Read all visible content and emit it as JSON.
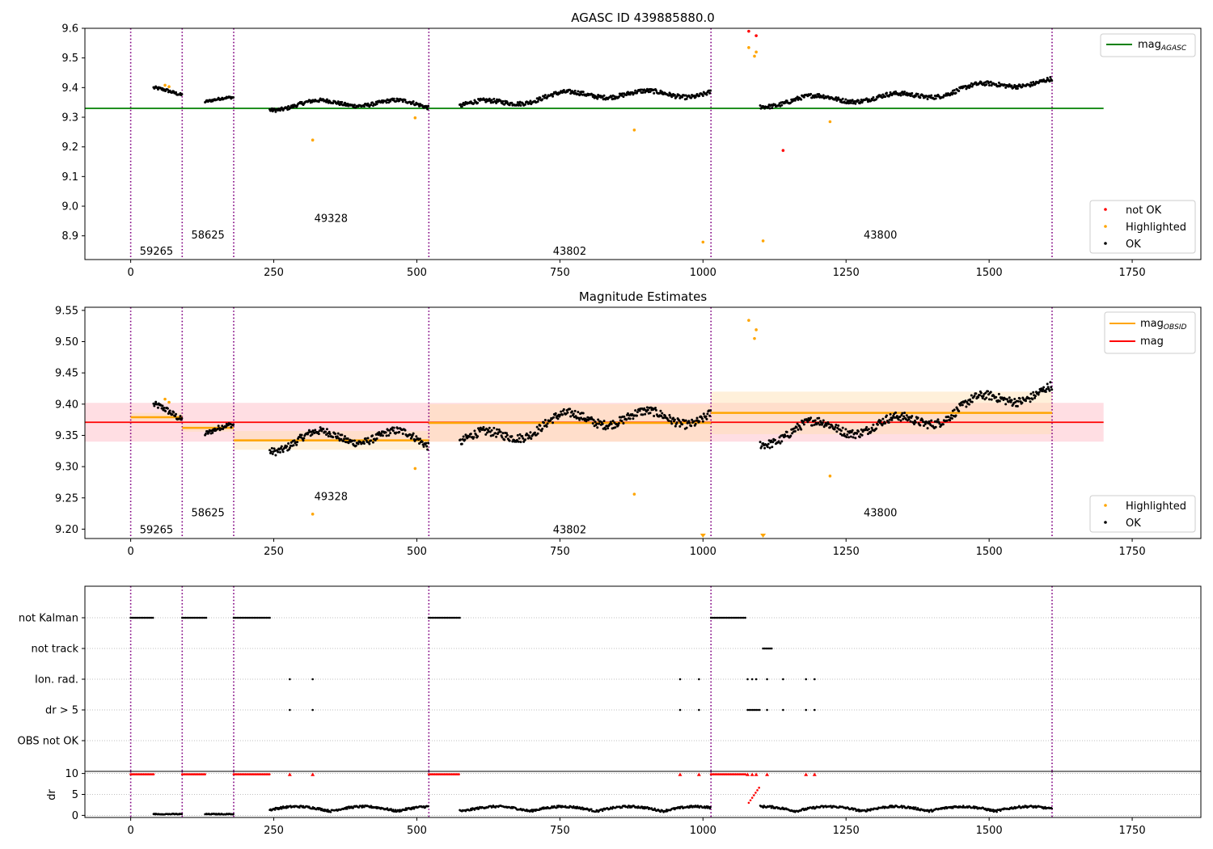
{
  "colors": {
    "ok": "#000000",
    "highlighted": "#ffa500",
    "not_ok": "#ff0000",
    "mag_agasc": "#008000",
    "mag_obsid": "#ffa500",
    "mag": "#ff0000",
    "obsid_boundary": "#800080",
    "band_mag": "#ffb6c1",
    "band_obsid": "#ffdead"
  },
  "chart_data": [
    {
      "type": "scatter",
      "title": "AGASC ID 439885880.0",
      "xlim": [
        -80,
        1870
      ],
      "ylim": [
        8.82,
        9.6
      ],
      "xticks": [
        0,
        250,
        500,
        750,
        1000,
        1250,
        1500,
        1750
      ],
      "yticks": [
        8.9,
        9.0,
        9.1,
        9.2,
        9.3,
        9.4,
        9.5,
        9.6
      ],
      "mag_agasc": 9.33,
      "mag_agasc_range": [
        -80,
        1700
      ],
      "obsid_boundaries": [
        0,
        90,
        180,
        521,
        1014,
        1610
      ],
      "obsid_labels": [
        {
          "text": "59265",
          "x": 45,
          "y": 8.85
        },
        {
          "text": "58625",
          "x": 135,
          "y": 8.905
        },
        {
          "text": "49328",
          "x": 350,
          "y": 8.96
        },
        {
          "text": "43802",
          "x": 767,
          "y": 8.85
        },
        {
          "text": "43800",
          "x": 1310,
          "y": 8.905
        }
      ],
      "legend_lines": [
        {
          "name": "mag",
          "sub": "AGASC",
          "color_key": "mag_agasc"
        }
      ],
      "legend_points": [
        {
          "name": "not OK",
          "color_key": "not_ok"
        },
        {
          "name": "Highlighted",
          "color_key": "highlighted"
        },
        {
          "name": "OK",
          "color_key": "ok"
        }
      ],
      "segments": [
        {
          "start": 40,
          "end": 90,
          "mean": 9.38,
          "noise": 0.005
        },
        {
          "start": 130,
          "end": 180,
          "mean": 9.362,
          "noise": 0.004
        },
        {
          "start": 243,
          "end": 521,
          "mean": 9.342,
          "noise": 0.006
        },
        {
          "start": 575,
          "end": 1014,
          "mean": 9.37,
          "noise": 0.007
        },
        {
          "start": 1100,
          "end": 1610,
          "mean": 9.385,
          "noise": 0.007
        }
      ],
      "highlighted_points": [
        [
          60,
          9.408
        ],
        [
          67,
          9.403
        ],
        [
          318,
          9.223
        ],
        [
          497,
          9.298
        ],
        [
          880,
          9.257
        ],
        [
          1000,
          8.879
        ],
        [
          1080,
          9.535
        ],
        [
          1090,
          9.506
        ],
        [
          1093,
          9.52
        ],
        [
          1105,
          8.883
        ],
        [
          1222,
          9.285
        ]
      ],
      "not_ok_points": [
        [
          1080,
          9.59
        ],
        [
          1093,
          9.575
        ],
        [
          1140,
          9.188
        ]
      ]
    },
    {
      "type": "scatter",
      "title": "Magnitude Estimates",
      "xlim": [
        -80,
        1870
      ],
      "ylim": [
        9.185,
        9.555
      ],
      "xticks": [
        0,
        250,
        500,
        750,
        1000,
        1250,
        1500,
        1750
      ],
      "yticks": [
        9.2,
        9.25,
        9.3,
        9.35,
        9.4,
        9.45,
        9.5,
        9.55
      ],
      "mag": 9.371,
      "mag_band": [
        9.34,
        9.402
      ],
      "mag_range": [
        -80,
        1700
      ],
      "obsid_boundaries": [
        0,
        90,
        180,
        521,
        1014,
        1610
      ],
      "obsid_means": [
        {
          "start": 0,
          "end": 90,
          "mean": 9.379,
          "band": [
            9.372,
            9.386
          ]
        },
        {
          "start": 90,
          "end": 180,
          "mean": 9.362,
          "band": [
            9.356,
            9.368
          ]
        },
        {
          "start": 180,
          "end": 521,
          "mean": 9.342,
          "band": [
            9.327,
            9.357
          ]
        },
        {
          "start": 521,
          "end": 1014,
          "mean": 9.37,
          "band": [
            9.34,
            9.4
          ]
        },
        {
          "start": 1014,
          "end": 1610,
          "mean": 9.386,
          "band": [
            9.352,
            9.42
          ]
        }
      ],
      "obsid_labels": [
        {
          "text": "59265",
          "x": 45,
          "y": 9.2
        },
        {
          "text": "58625",
          "x": 135,
          "y": 9.227
        },
        {
          "text": "49328",
          "x": 350,
          "y": 9.253
        },
        {
          "text": "43802",
          "x": 767,
          "y": 9.2
        },
        {
          "text": "43800",
          "x": 1310,
          "y": 9.227
        }
      ],
      "legend_lines": [
        {
          "name": "mag",
          "sub": "OBSID",
          "color_key": "mag_obsid"
        },
        {
          "name": "mag",
          "sub": "",
          "color_key": "mag"
        }
      ],
      "legend_points": [
        {
          "name": "Highlighted",
          "color_key": "highlighted"
        },
        {
          "name": "OK",
          "color_key": "ok"
        }
      ],
      "highlighted_points": [
        [
          60,
          9.408
        ],
        [
          67,
          9.403
        ],
        [
          318,
          9.224
        ],
        [
          497,
          9.297
        ],
        [
          880,
          9.256
        ],
        [
          1080,
          9.534
        ],
        [
          1090,
          9.505
        ],
        [
          1093,
          9.519
        ],
        [
          1222,
          9.285
        ]
      ],
      "clipped_points": [
        1000,
        1105
      ]
    },
    {
      "type": "scatter",
      "categories": [
        "not Kalman",
        "not track",
        "Ion. rad.",
        "dr > 5",
        "OBS not OK"
      ],
      "xlim": [
        -80,
        1870
      ],
      "xticks": [
        0,
        250,
        500,
        750,
        1000,
        1250,
        1500,
        1750
      ],
      "flag_spans": {
        "not Kalman": [
          [
            0,
            40
          ],
          [
            90,
            132
          ],
          [
            180,
            243
          ],
          [
            521,
            575
          ],
          [
            1014,
            1075
          ]
        ],
        "not track": [
          [
            1105,
            1120
          ]
        ],
        "Ion. rad.": [
          [
            278,
            278
          ],
          [
            318,
            318
          ],
          [
            960,
            960
          ],
          [
            993,
            993
          ],
          [
            1078,
            1078
          ],
          [
            1086,
            1086
          ],
          [
            1093,
            1093
          ],
          [
            1112,
            1112
          ],
          [
            1140,
            1140
          ],
          [
            1180,
            1180
          ],
          [
            1195,
            1195
          ]
        ],
        "dr > 5": [
          [
            278,
            278
          ],
          [
            318,
            318
          ],
          [
            960,
            960
          ],
          [
            993,
            993
          ],
          [
            1078,
            1100
          ],
          [
            1112,
            1112
          ],
          [
            1140,
            1140
          ],
          [
            1180,
            1180
          ],
          [
            1195,
            1195
          ]
        ],
        "OBS not OK": []
      },
      "dr_ylim": [
        -0.5,
        10.5
      ],
      "dr_yticks": [
        0,
        5,
        10
      ],
      "dr_ylabel": "dr",
      "obsid_boundaries": [
        0,
        90,
        180,
        521,
        1014,
        1610
      ]
    }
  ]
}
